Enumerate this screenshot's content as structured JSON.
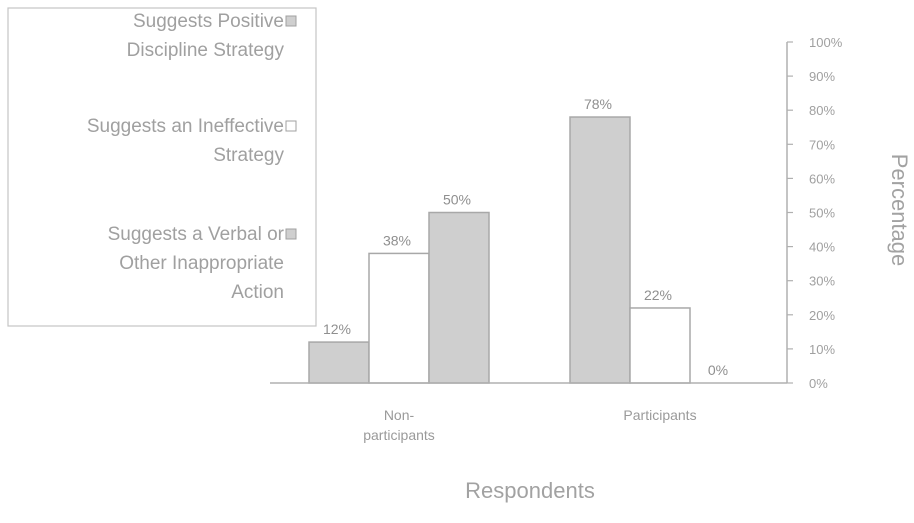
{
  "chart_data": {
    "type": "bar",
    "categories": [
      "Non-participants",
      "Participants"
    ],
    "category_lines": [
      [
        "Non-",
        "participants"
      ],
      [
        "Participants"
      ]
    ],
    "series": [
      {
        "name": "Suggests Positive Discipline Strategy",
        "legend_lines": [
          "Suggests Positive",
          "Discipline Strategy"
        ],
        "values": [
          12,
          78
        ],
        "color": "#cfcfcf"
      },
      {
        "name": "Suggests an Ineffective Strategy",
        "legend_lines": [
          "Suggests an Ineffective",
          "Strategy"
        ],
        "values": [
          38,
          22
        ],
        "color": "#ffffff"
      },
      {
        "name": "Suggests a Verbal or Other Inappropriate Action",
        "legend_lines": [
          "Suggests a Verbal or",
          "Other Inappropriate",
          "Action"
        ],
        "values": [
          50,
          0
        ],
        "color": "#cfcfcf"
      }
    ],
    "series_order_in_group": [
      0,
      1,
      2
    ],
    "data_labels": [
      [
        "12%",
        "38%",
        "50%"
      ],
      [
        "78%",
        "22%",
        "0%"
      ]
    ],
    "y_ticks": [
      "0%",
      "10%",
      "20%",
      "30%",
      "40%",
      "50%",
      "60%",
      "70%",
      "80%",
      "90%",
      "100%"
    ],
    "ylim": [
      0,
      100
    ],
    "xlabel": "Respondents",
    "ylabel": "Percentage",
    "legend_position": "top-left",
    "grid": false
  }
}
